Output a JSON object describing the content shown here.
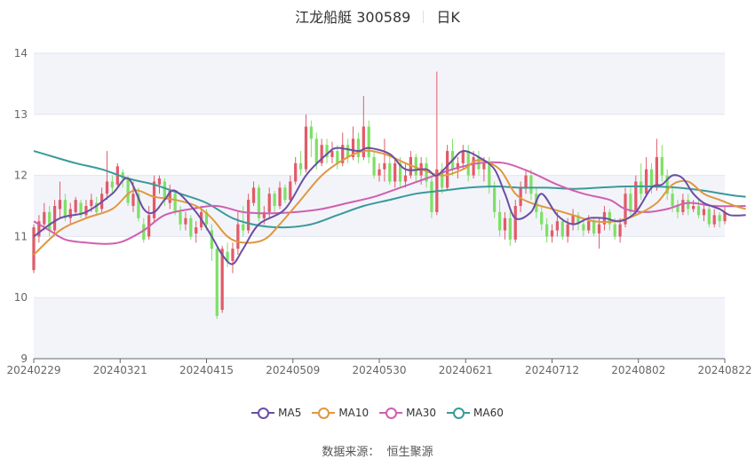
{
  "title": {
    "name": "江龙船艇 300589",
    "period": "日K"
  },
  "source": {
    "label": "数据来源：",
    "provider": "恒生聚源"
  },
  "colors": {
    "up": "#e15b68",
    "down": "#7ee066",
    "MA5": "#6b4fa3",
    "MA10": "#e0983f",
    "MA30": "#d05fb0",
    "MA60": "#3a9a9a"
  },
  "chart_data": {
    "type": "candlestick",
    "ylim": [
      9,
      14
    ],
    "yticks": [
      9,
      10,
      11,
      12,
      13,
      14
    ],
    "xticks": [
      "20240229",
      "20240321",
      "20240415",
      "20240509",
      "20240530",
      "20240621",
      "20240712",
      "20240802",
      "20240822"
    ],
    "legend": [
      "MA5",
      "MA10",
      "MA30",
      "MA60"
    ],
    "legend_position": "bottom",
    "candles": [
      [
        10.45,
        11.15,
        10.4,
        11.2
      ],
      [
        11.0,
        11.25,
        10.9,
        11.35
      ],
      [
        11.2,
        11.4,
        11.1,
        11.55
      ],
      [
        11.4,
        11.1,
        11.0,
        11.5
      ],
      [
        11.1,
        11.5,
        11.05,
        11.6
      ],
      [
        11.45,
        11.6,
        11.3,
        11.9
      ],
      [
        11.6,
        11.3,
        11.25,
        11.7
      ],
      [
        11.3,
        11.45,
        11.2,
        11.55
      ],
      [
        11.4,
        11.6,
        11.35,
        11.65
      ],
      [
        11.55,
        11.35,
        11.3,
        11.6
      ],
      [
        11.35,
        11.5,
        11.3,
        11.6
      ],
      [
        11.5,
        11.6,
        11.4,
        11.7
      ],
      [
        11.55,
        11.4,
        11.35,
        11.65
      ],
      [
        11.45,
        11.7,
        11.4,
        11.8
      ],
      [
        11.7,
        11.9,
        11.6,
        12.4
      ],
      [
        11.9,
        11.8,
        11.7,
        12.0
      ],
      [
        11.85,
        12.15,
        11.8,
        12.2
      ],
      [
        12.05,
        11.95,
        11.8,
        12.1
      ],
      [
        11.95,
        11.55,
        11.5,
        12.0
      ],
      [
        11.5,
        11.7,
        11.4,
        11.9
      ],
      [
        11.7,
        11.3,
        11.25,
        11.8
      ],
      [
        11.2,
        10.95,
        10.9,
        11.3
      ],
      [
        11.0,
        11.35,
        10.95,
        11.5
      ],
      [
        11.3,
        11.9,
        11.25,
        12.0
      ],
      [
        11.85,
        11.95,
        11.7,
        12.0
      ],
      [
        11.9,
        11.6,
        11.5,
        11.95
      ],
      [
        11.55,
        11.75,
        11.45,
        11.85
      ],
      [
        11.7,
        11.4,
        11.35,
        11.75
      ],
      [
        11.4,
        11.2,
        11.1,
        11.5
      ],
      [
        11.2,
        11.3,
        11.1,
        11.4
      ],
      [
        11.3,
        11.0,
        10.95,
        11.35
      ],
      [
        11.05,
        11.15,
        10.9,
        11.25
      ],
      [
        11.15,
        11.4,
        11.1,
        11.5
      ],
      [
        11.4,
        11.2,
        11.1,
        11.45
      ],
      [
        11.1,
        10.8,
        10.6,
        11.2
      ],
      [
        10.8,
        9.7,
        9.65,
        10.85
      ],
      [
        9.8,
        10.8,
        9.75,
        10.85
      ],
      [
        10.75,
        10.6,
        10.5,
        10.9
      ],
      [
        10.6,
        10.8,
        10.4,
        10.9
      ],
      [
        10.8,
        11.2,
        10.7,
        11.4
      ],
      [
        11.2,
        11.1,
        11.0,
        11.5
      ],
      [
        11.1,
        11.6,
        11.05,
        11.7
      ],
      [
        11.55,
        11.8,
        11.5,
        11.9
      ],
      [
        11.8,
        11.3,
        11.25,
        11.85
      ],
      [
        11.3,
        11.4,
        11.2,
        11.5
      ],
      [
        11.4,
        11.7,
        11.3,
        11.8
      ],
      [
        11.7,
        11.5,
        11.4,
        11.75
      ],
      [
        11.5,
        11.8,
        11.45,
        11.9
      ],
      [
        11.8,
        11.6,
        11.55,
        11.85
      ],
      [
        11.6,
        11.9,
        11.55,
        12.0
      ],
      [
        11.9,
        12.2,
        11.85,
        12.3
      ],
      [
        12.2,
        12.1,
        12.0,
        12.4
      ],
      [
        12.1,
        12.8,
        12.05,
        13.0
      ],
      [
        12.8,
        12.6,
        12.3,
        12.9
      ],
      [
        12.6,
        12.2,
        12.1,
        12.7
      ],
      [
        12.2,
        12.5,
        12.15,
        12.6
      ],
      [
        12.5,
        12.3,
        12.2,
        12.6
      ],
      [
        12.3,
        12.4,
        12.2,
        12.55
      ],
      [
        12.4,
        12.2,
        12.1,
        12.5
      ],
      [
        12.2,
        12.5,
        12.15,
        12.7
      ],
      [
        12.5,
        12.3,
        12.2,
        12.6
      ],
      [
        12.3,
        12.6,
        12.25,
        12.8
      ],
      [
        12.6,
        12.3,
        12.2,
        12.7
      ],
      [
        12.3,
        12.8,
        12.25,
        13.3
      ],
      [
        12.8,
        12.3,
        12.2,
        12.9
      ],
      [
        12.3,
        12.0,
        11.95,
        12.4
      ],
      [
        12.0,
        12.1,
        11.9,
        12.2
      ],
      [
        12.1,
        12.2,
        11.9,
        12.6
      ],
      [
        12.2,
        11.9,
        11.85,
        12.3
      ],
      [
        11.9,
        12.2,
        11.8,
        12.3
      ],
      [
        12.2,
        11.9,
        11.8,
        12.3
      ],
      [
        11.9,
        12.0,
        11.8,
        12.2
      ],
      [
        12.0,
        12.3,
        11.95,
        12.4
      ],
      [
        12.3,
        12.0,
        11.9,
        12.35
      ],
      [
        12.0,
        12.2,
        11.85,
        12.3
      ],
      [
        12.2,
        11.9,
        11.8,
        12.3
      ],
      [
        11.9,
        11.4,
        11.3,
        12.0
      ],
      [
        11.4,
        12.1,
        11.35,
        13.7
      ],
      [
        12.1,
        11.8,
        11.7,
        12.2
      ],
      [
        11.8,
        12.4,
        11.75,
        12.5
      ],
      [
        12.4,
        12.1,
        12.0,
        12.6
      ],
      [
        12.1,
        12.2,
        11.95,
        12.3
      ],
      [
        12.2,
        12.4,
        12.1,
        12.5
      ],
      [
        12.4,
        12.0,
        11.9,
        12.5
      ],
      [
        12.0,
        12.3,
        11.95,
        12.4
      ],
      [
        12.3,
        12.1,
        12.0,
        12.4
      ],
      [
        12.1,
        12.2,
        11.9,
        12.3
      ],
      [
        12.2,
        11.8,
        11.7,
        12.3
      ],
      [
        11.8,
        11.4,
        11.3,
        11.9
      ],
      [
        11.4,
        11.1,
        11.0,
        11.6
      ],
      [
        11.1,
        11.3,
        10.95,
        11.4
      ],
      [
        11.3,
        10.95,
        10.85,
        11.4
      ],
      [
        10.95,
        11.5,
        10.9,
        11.6
      ],
      [
        11.5,
        11.8,
        11.4,
        11.9
      ],
      [
        11.8,
        12.0,
        11.7,
        12.1
      ],
      [
        12.0,
        11.7,
        11.6,
        12.1
      ],
      [
        11.7,
        11.4,
        11.3,
        11.8
      ],
      [
        11.4,
        11.2,
        11.1,
        11.5
      ],
      [
        11.2,
        11.0,
        10.9,
        11.3
      ],
      [
        11.0,
        11.1,
        10.9,
        11.2
      ],
      [
        11.1,
        11.25,
        11.0,
        11.4
      ],
      [
        11.25,
        11.0,
        10.95,
        11.3
      ],
      [
        11.0,
        11.2,
        10.9,
        11.3
      ],
      [
        11.2,
        11.35,
        11.1,
        11.45
      ],
      [
        11.35,
        11.2,
        11.1,
        11.4
      ],
      [
        11.2,
        11.1,
        11.0,
        11.3
      ],
      [
        11.1,
        11.25,
        11.05,
        11.35
      ],
      [
        11.25,
        11.05,
        11.0,
        11.3
      ],
      [
        11.05,
        11.2,
        10.8,
        11.3
      ],
      [
        11.2,
        11.4,
        11.1,
        11.5
      ],
      [
        11.4,
        11.2,
        11.1,
        11.45
      ],
      [
        11.2,
        11.0,
        10.95,
        11.3
      ],
      [
        11.0,
        11.2,
        10.9,
        11.3
      ],
      [
        11.2,
        11.7,
        11.15,
        11.8
      ],
      [
        11.7,
        11.4,
        11.35,
        11.8
      ],
      [
        11.4,
        11.9,
        11.35,
        12.0
      ],
      [
        11.9,
        11.7,
        11.6,
        12.2
      ],
      [
        11.7,
        12.1,
        11.65,
        12.3
      ],
      [
        12.1,
        11.8,
        11.7,
        12.2
      ],
      [
        11.8,
        12.3,
        11.75,
        12.6
      ],
      [
        12.3,
        12.0,
        11.9,
        12.5
      ],
      [
        12.0,
        11.7,
        11.6,
        12.1
      ],
      [
        11.7,
        11.5,
        11.4,
        11.8
      ],
      [
        11.5,
        11.4,
        11.3,
        11.6
      ],
      [
        11.4,
        11.6,
        11.35,
        11.7
      ],
      [
        11.6,
        11.45,
        11.35,
        11.7
      ],
      [
        11.45,
        11.5,
        11.4,
        11.6
      ],
      [
        11.5,
        11.35,
        11.3,
        11.6
      ],
      [
        11.35,
        11.45,
        11.25,
        11.55
      ],
      [
        11.45,
        11.2,
        11.15,
        11.5
      ],
      [
        11.2,
        11.35,
        11.15,
        11.45
      ],
      [
        11.35,
        11.25,
        11.15,
        11.4
      ],
      [
        11.25,
        11.4,
        11.2,
        11.5
      ]
    ],
    "ma5": [
      [
        0,
        11.0
      ],
      [
        5,
        11.3
      ],
      [
        10,
        11.4
      ],
      [
        15,
        11.7
      ],
      [
        18,
        11.95
      ],
      [
        21,
        11.45
      ],
      [
        23,
        11.4
      ],
      [
        25,
        11.6
      ],
      [
        27,
        11.75
      ],
      [
        31,
        11.4
      ],
      [
        34,
        11.0
      ],
      [
        36,
        10.7
      ],
      [
        38,
        10.55
      ],
      [
        40,
        10.8
      ],
      [
        43,
        11.2
      ],
      [
        48,
        11.45
      ],
      [
        52,
        12.0
      ],
      [
        56,
        12.35
      ],
      [
        58,
        12.45
      ],
      [
        62,
        12.4
      ],
      [
        64,
        12.45
      ],
      [
        68,
        12.35
      ],
      [
        71,
        12.1
      ],
      [
        75,
        12.1
      ],
      [
        77,
        12.0
      ],
      [
        80,
        12.25
      ],
      [
        82,
        12.4
      ],
      [
        85,
        12.3
      ],
      [
        88,
        12.1
      ],
      [
        90,
        11.7
      ],
      [
        92,
        11.3
      ],
      [
        95,
        11.4
      ],
      [
        97,
        11.7
      ],
      [
        100,
        11.35
      ],
      [
        103,
        11.2
      ],
      [
        106,
        11.3
      ],
      [
        109,
        11.3
      ],
      [
        112,
        11.25
      ],
      [
        115,
        11.4
      ],
      [
        118,
        11.8
      ],
      [
        120,
        11.85
      ],
      [
        122,
        12.0
      ],
      [
        124,
        11.95
      ],
      [
        126,
        11.7
      ],
      [
        128,
        11.55
      ],
      [
        131,
        11.45
      ],
      [
        133,
        11.35
      ],
      [
        136,
        11.35
      ]
    ],
    "ma10": [
      [
        0,
        10.7
      ],
      [
        5,
        11.1
      ],
      [
        10,
        11.3
      ],
      [
        15,
        11.45
      ],
      [
        19,
        11.75
      ],
      [
        23,
        11.65
      ],
      [
        27,
        11.6
      ],
      [
        31,
        11.5
      ],
      [
        34,
        11.3
      ],
      [
        37,
        11.0
      ],
      [
        40,
        10.9
      ],
      [
        44,
        10.95
      ],
      [
        47,
        11.2
      ],
      [
        51,
        11.6
      ],
      [
        55,
        12.0
      ],
      [
        59,
        12.25
      ],
      [
        63,
        12.4
      ],
      [
        67,
        12.35
      ],
      [
        71,
        12.2
      ],
      [
        74,
        12.1
      ],
      [
        78,
        12.0
      ],
      [
        82,
        12.1
      ],
      [
        85,
        12.25
      ],
      [
        89,
        12.1
      ],
      [
        92,
        11.7
      ],
      [
        95,
        11.55
      ],
      [
        99,
        11.45
      ],
      [
        103,
        11.35
      ],
      [
        107,
        11.25
      ],
      [
        111,
        11.25
      ],
      [
        115,
        11.35
      ],
      [
        119,
        11.55
      ],
      [
        122,
        11.85
      ],
      [
        125,
        11.9
      ],
      [
        128,
        11.7
      ],
      [
        131,
        11.6
      ],
      [
        134,
        11.5
      ],
      [
        136,
        11.45
      ]
    ],
    "ma30": [
      [
        0,
        11.25
      ],
      [
        3,
        11.1
      ],
      [
        6,
        10.95
      ],
      [
        10,
        10.9
      ],
      [
        14,
        10.88
      ],
      [
        17,
        10.92
      ],
      [
        21,
        11.1
      ],
      [
        25,
        11.35
      ],
      [
        30,
        11.45
      ],
      [
        35,
        11.5
      ],
      [
        40,
        11.4
      ],
      [
        45,
        11.38
      ],
      [
        50,
        11.4
      ],
      [
        55,
        11.45
      ],
      [
        60,
        11.55
      ],
      [
        65,
        11.65
      ],
      [
        70,
        11.8
      ],
      [
        75,
        11.95
      ],
      [
        80,
        12.1
      ],
      [
        85,
        12.2
      ],
      [
        90,
        12.2
      ],
      [
        95,
        12.05
      ],
      [
        100,
        11.85
      ],
      [
        105,
        11.7
      ],
      [
        110,
        11.6
      ],
      [
        113,
        11.45
      ],
      [
        117,
        11.4
      ],
      [
        121,
        11.45
      ],
      [
        125,
        11.55
      ],
      [
        130,
        11.5
      ],
      [
        136,
        11.5
      ]
    ],
    "ma60": [
      [
        0,
        12.4
      ],
      [
        4,
        12.3
      ],
      [
        8,
        12.2
      ],
      [
        13,
        12.1
      ],
      [
        18,
        11.95
      ],
      [
        23,
        11.85
      ],
      [
        28,
        11.7
      ],
      [
        33,
        11.55
      ],
      [
        38,
        11.3
      ],
      [
        43,
        11.18
      ],
      [
        48,
        11.15
      ],
      [
        53,
        11.2
      ],
      [
        58,
        11.35
      ],
      [
        63,
        11.5
      ],
      [
        68,
        11.6
      ],
      [
        73,
        11.7
      ],
      [
        78,
        11.75
      ],
      [
        83,
        11.8
      ],
      [
        88,
        11.82
      ],
      [
        93,
        11.8
      ],
      [
        98,
        11.8
      ],
      [
        103,
        11.78
      ],
      [
        108,
        11.8
      ],
      [
        113,
        11.82
      ],
      [
        118,
        11.82
      ],
      [
        123,
        11.8
      ],
      [
        128,
        11.75
      ],
      [
        133,
        11.68
      ],
      [
        136,
        11.65
      ]
    ]
  }
}
